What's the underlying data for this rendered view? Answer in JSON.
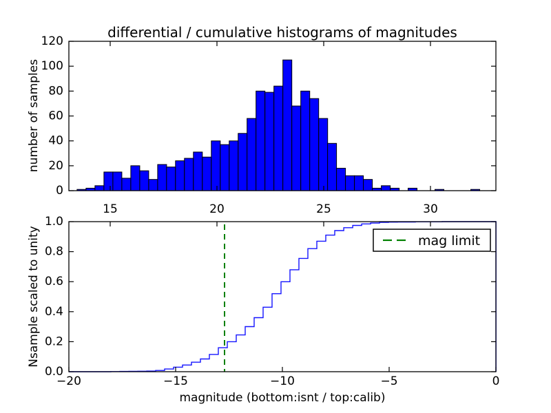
{
  "figure": {
    "title": "differential / cumulative histograms of magnitudes",
    "background": "#ffffff"
  },
  "colors": {
    "bar_fill": "#0000ff",
    "bar_edge": "#000000",
    "step_line": "#1414ff",
    "mag_limit_line": "#008000",
    "axis": "#000000",
    "text": "#000000",
    "legend_bg": "#ffffff"
  },
  "chart_data": [
    {
      "type": "bar",
      "name": "differential histogram (calib magnitudes)",
      "title": "differential / cumulative histograms of magnitudes",
      "ylabel": "number of samples",
      "ylim": [
        0,
        120
      ],
      "yticks": [
        0,
        20,
        40,
        60,
        80,
        100,
        120
      ],
      "ytick_labels": [
        "0",
        "20",
        "40",
        "60",
        "80",
        "100",
        "120"
      ],
      "xlim": [
        13.06,
        33.06
      ],
      "xticks": [
        15,
        20,
        25,
        30
      ],
      "xtick_labels": [
        "15",
        "20",
        "25",
        "30"
      ],
      "bin_start": 13.45,
      "bin_width": 0.419,
      "values": [
        1,
        2,
        4,
        15,
        15,
        10,
        20,
        16,
        9,
        21,
        19,
        24,
        26,
        31,
        27,
        40,
        37,
        40,
        46,
        58,
        80,
        79,
        84,
        105,
        68,
        80,
        74,
        58,
        38,
        18,
        12,
        12,
        9,
        2,
        4,
        2,
        0,
        2,
        0,
        0,
        1,
        0,
        0,
        0,
        1,
        0
      ],
      "grid": false
    },
    {
      "type": "line",
      "name": "cumulative histogram (isnt magnitudes, step curve scaled to unity)",
      "ylabel": "Nsample scaled to unity",
      "xlabel": "magnitude (bottom:isnt / top:calib)",
      "ylim": [
        0.0,
        1.0
      ],
      "yticks": [
        0.0,
        0.2,
        0.4,
        0.6,
        0.8,
        1.0
      ],
      "ytick_labels": [
        "0.0",
        "0.2",
        "0.4",
        "0.6",
        "0.8",
        "1.0"
      ],
      "xlim": [
        -20,
        0
      ],
      "xticks": [
        -20,
        -15,
        -10,
        -5,
        0
      ],
      "xtick_labels": [
        "−20",
        "−15",
        "−10",
        "−5",
        "0"
      ],
      "top_axis_scale": "calib",
      "top_axis_ticks": [
        15,
        20,
        25,
        30
      ],
      "bin_start": -19.29,
      "bin_width": 0.4194,
      "counts": [
        0,
        0,
        0,
        1,
        1,
        1,
        1,
        1,
        5,
        11,
        15,
        17,
        22,
        26,
        36,
        53,
        48,
        53,
        66,
        71,
        83,
        107,
        95,
        95,
        90,
        77,
        59,
        48,
        36,
        23,
        18,
        12,
        7,
        5,
        2,
        1,
        0,
        2,
        0,
        0,
        1,
        0,
        0,
        0,
        0,
        0
      ],
      "closes_to_zero_at": 0,
      "mag_limit": {
        "x": -12.71,
        "label": "mag limit",
        "style": "dashed"
      },
      "legend": {
        "entries": [
          "mag limit"
        ],
        "position": "upper right"
      },
      "grid": false
    }
  ]
}
